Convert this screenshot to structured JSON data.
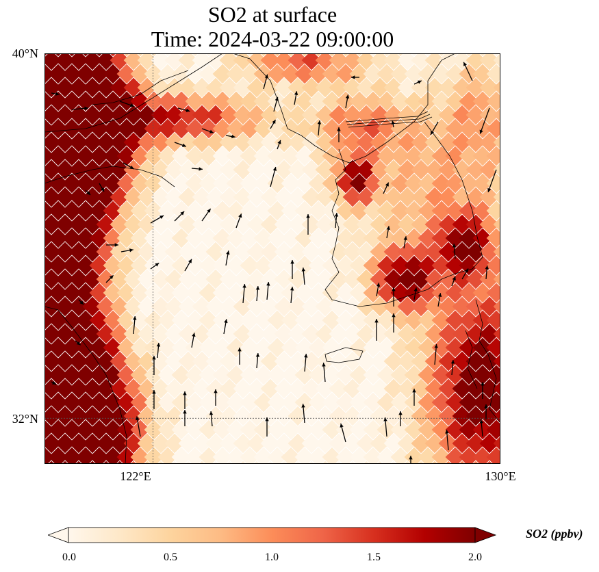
{
  "title": {
    "line1": "SO2 at surface",
    "line2": "Time: 2024-03-22 09:00:00"
  },
  "map": {
    "lon_range": [
      119.5,
      130
    ],
    "lat_range": [
      31,
      40
    ],
    "lat_labels": [
      "40°N",
      "32°N"
    ],
    "lon_labels": [
      "122°E",
      "130°E"
    ],
    "gridlines": {
      "lon": 122,
      "lat": 32
    }
  },
  "colorbar": {
    "label": "SO2 (ppbv)",
    "min": 0.0,
    "max": 2.0,
    "ticks": [
      "0.0",
      "0.5",
      "1.0",
      "1.5",
      "2.0"
    ],
    "extend": "both",
    "colormap": "OrRd",
    "colors": [
      "#fff7ec",
      "#fee8c8",
      "#fdd49e",
      "#fdbb84",
      "#fc8d59",
      "#ef6548",
      "#d7301f",
      "#b30000",
      "#7f0000"
    ]
  },
  "icons": [
    "wind-vector-arrow-icon",
    "colorbar-extend-arrow-icon"
  ]
}
